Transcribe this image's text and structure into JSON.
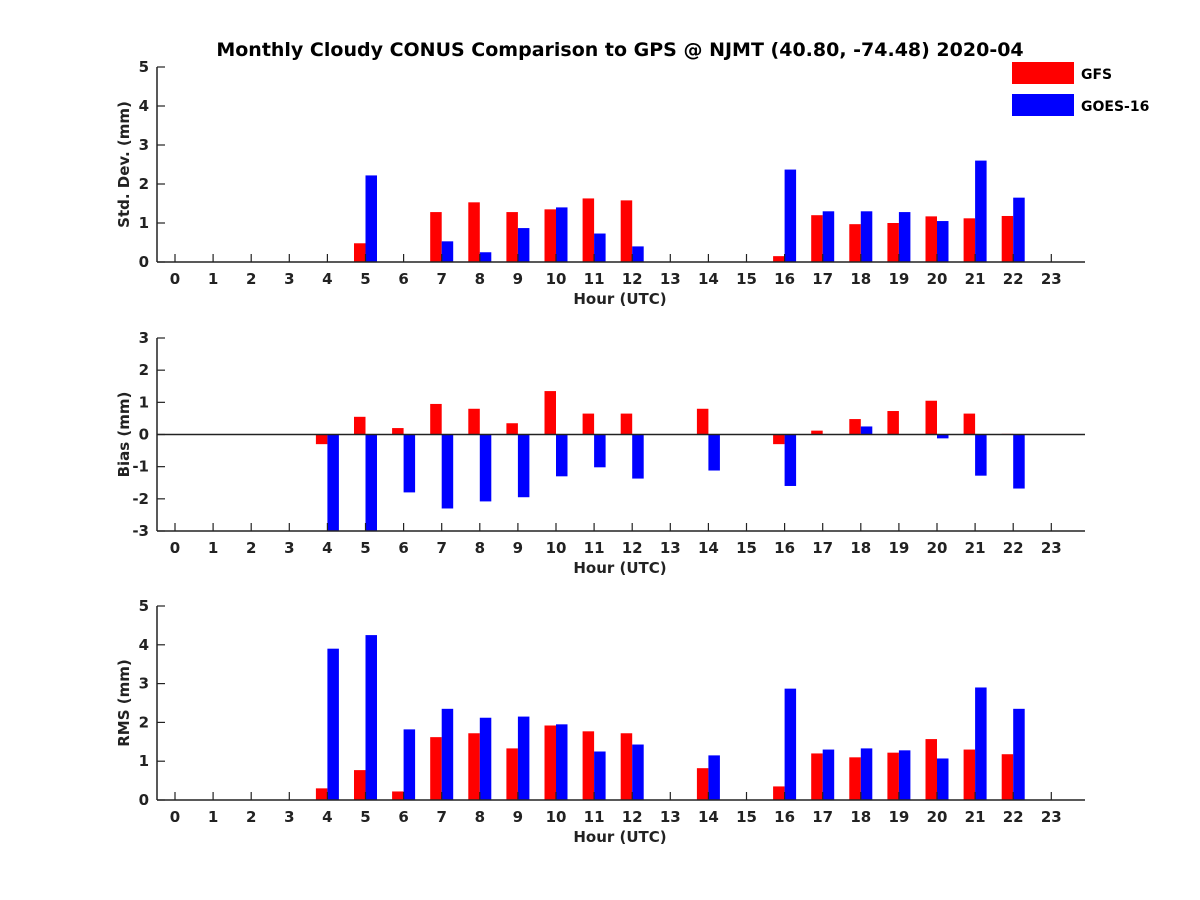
{
  "title": "Monthly Cloudy CONUS Comparison to GPS @ NJMT (40.80, -74.48) 2020-04",
  "legend": {
    "placement": "top-right",
    "entries": [
      {
        "name": "GFS",
        "color": "#ff0000"
      },
      {
        "name": "GOES-16",
        "color": "#0000ff"
      }
    ]
  },
  "chart_data": [
    {
      "type": "bar",
      "xlabel": "Hour (UTC)",
      "ylabel": "Std. Dev. (mm)",
      "ylim": [
        0,
        5
      ],
      "yticks": [
        0,
        1,
        2,
        3,
        4,
        5
      ],
      "categories": [
        "0",
        "1",
        "2",
        "3",
        "4",
        "5",
        "6",
        "7",
        "8",
        "9",
        "10",
        "11",
        "12",
        "13",
        "14",
        "15",
        "16",
        "17",
        "18",
        "19",
        "20",
        "21",
        "22",
        "23"
      ],
      "series": [
        {
          "name": "GFS",
          "color": "#ff0000",
          "values": [
            null,
            null,
            null,
            null,
            null,
            0.48,
            null,
            1.28,
            1.53,
            1.28,
            1.35,
            1.63,
            1.58,
            null,
            null,
            null,
            0.15,
            1.2,
            0.97,
            1.0,
            1.17,
            1.12,
            1.18,
            null
          ]
        },
        {
          "name": "GOES-16",
          "color": "#0000ff",
          "values": [
            null,
            null,
            null,
            null,
            null,
            2.22,
            null,
            0.53,
            0.25,
            0.87,
            1.4,
            0.73,
            0.4,
            null,
            null,
            null,
            2.37,
            1.3,
            1.3,
            1.28,
            1.05,
            2.6,
            1.65,
            null
          ]
        }
      ]
    },
    {
      "type": "bar",
      "xlabel": "Hour (UTC)",
      "ylabel": "Bias (mm)",
      "ylim": [
        -3,
        3
      ],
      "yticks": [
        -3,
        -2,
        -1,
        0,
        1,
        2,
        3
      ],
      "categories": [
        "0",
        "1",
        "2",
        "3",
        "4",
        "5",
        "6",
        "7",
        "8",
        "9",
        "10",
        "11",
        "12",
        "13",
        "14",
        "15",
        "16",
        "17",
        "18",
        "19",
        "20",
        "21",
        "22",
        "23"
      ],
      "series": [
        {
          "name": "GFS",
          "color": "#ff0000",
          "values": [
            null,
            null,
            null,
            null,
            -0.3,
            0.55,
            0.2,
            0.95,
            0.8,
            0.35,
            1.35,
            0.65,
            0.65,
            null,
            0.8,
            null,
            -0.3,
            0.12,
            0.48,
            0.73,
            1.05,
            0.65,
            0.02,
            null
          ]
        },
        {
          "name": "GOES-16",
          "color": "#0000ff",
          "values": [
            null,
            null,
            null,
            null,
            -3.0,
            -3.0,
            -1.8,
            -2.3,
            -2.08,
            -1.95,
            -1.3,
            -1.02,
            -1.37,
            null,
            -1.12,
            null,
            -1.6,
            null,
            0.25,
            null,
            -0.12,
            -1.28,
            -1.68,
            null
          ]
        }
      ]
    },
    {
      "type": "bar",
      "xlabel": "Hour (UTC)",
      "ylabel": "RMS (mm)",
      "ylim": [
        0,
        5
      ],
      "yticks": [
        0,
        1,
        2,
        3,
        4,
        5
      ],
      "categories": [
        "0",
        "1",
        "2",
        "3",
        "4",
        "5",
        "6",
        "7",
        "8",
        "9",
        "10",
        "11",
        "12",
        "13",
        "14",
        "15",
        "16",
        "17",
        "18",
        "19",
        "20",
        "21",
        "22",
        "23"
      ],
      "series": [
        {
          "name": "GFS",
          "color": "#ff0000",
          "values": [
            null,
            null,
            null,
            null,
            0.3,
            0.77,
            0.22,
            1.62,
            1.72,
            1.33,
            1.92,
            1.77,
            1.72,
            null,
            0.82,
            null,
            0.35,
            1.2,
            1.1,
            1.22,
            1.57,
            1.3,
            1.18,
            null
          ]
        },
        {
          "name": "GOES-16",
          "color": "#0000ff",
          "values": [
            null,
            null,
            null,
            null,
            3.9,
            4.25,
            1.82,
            2.35,
            2.12,
            2.15,
            1.95,
            1.25,
            1.43,
            null,
            1.15,
            null,
            2.87,
            1.3,
            1.33,
            1.28,
            1.07,
            2.9,
            2.35,
            null
          ]
        }
      ]
    }
  ]
}
